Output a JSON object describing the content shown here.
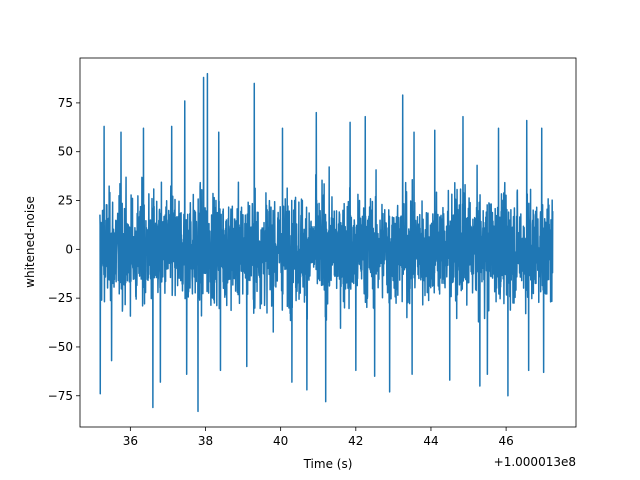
{
  "chart_data": {
    "type": "line",
    "title": "",
    "xlabel": "Time (s)",
    "ylabel": "whitened-noise",
    "x_offset_label": "+1.000013e8",
    "xlim": [
      34.66,
      47.86
    ],
    "ylim": [
      -91,
      98
    ],
    "x_range": [
      35.19,
      47.24
    ],
    "x_ticks": [
      36,
      38,
      40,
      42,
      44,
      46
    ],
    "x_tick_labels": [
      "36",
      "38",
      "40",
      "42",
      "44",
      "46"
    ],
    "y_ticks": [
      -75,
      -50,
      -25,
      0,
      25,
      50,
      75
    ],
    "y_tick_labels": [
      "−75",
      "−50",
      "−25",
      "0",
      "25",
      "50",
      "75"
    ],
    "grid": false,
    "legend": "none",
    "series": [
      {
        "color": "#1f77b4",
        "typical_range": [
          -45,
          45
        ],
        "peaks": [
          {
            "x": 35.3,
            "y": 63
          },
          {
            "x": 35.75,
            "y": 60
          },
          {
            "x": 36.35,
            "y": 62
          },
          {
            "x": 36.6,
            "y": 72
          },
          {
            "x": 37.1,
            "y": 63
          },
          {
            "x": 37.45,
            "y": 76
          },
          {
            "x": 37.95,
            "y": 88
          },
          {
            "x": 38.05,
            "y": 90
          },
          {
            "x": 38.35,
            "y": 60
          },
          {
            "x": 39.3,
            "y": 85
          },
          {
            "x": 40.05,
            "y": 62
          },
          {
            "x": 40.95,
            "y": 70
          },
          {
            "x": 41.85,
            "y": 65
          },
          {
            "x": 42.25,
            "y": 68
          },
          {
            "x": 43.25,
            "y": 79
          },
          {
            "x": 43.55,
            "y": 60
          },
          {
            "x": 44.1,
            "y": 61
          },
          {
            "x": 44.85,
            "y": 68
          },
          {
            "x": 45.8,
            "y": 62
          },
          {
            "x": 46.55,
            "y": 66
          },
          {
            "x": 46.95,
            "y": 62
          }
        ],
        "troughs": [
          {
            "x": 35.2,
            "y": -74
          },
          {
            "x": 35.5,
            "y": -57
          },
          {
            "x": 36.6,
            "y": -81
          },
          {
            "x": 36.8,
            "y": -68
          },
          {
            "x": 37.5,
            "y": -64
          },
          {
            "x": 37.8,
            "y": -83
          },
          {
            "x": 38.4,
            "y": -62
          },
          {
            "x": 39.1,
            "y": -60
          },
          {
            "x": 40.3,
            "y": -68
          },
          {
            "x": 40.7,
            "y": -72
          },
          {
            "x": 41.2,
            "y": -78
          },
          {
            "x": 42.0,
            "y": -62
          },
          {
            "x": 42.5,
            "y": -65
          },
          {
            "x": 42.9,
            "y": -73
          },
          {
            "x": 43.5,
            "y": -64
          },
          {
            "x": 44.5,
            "y": -67
          },
          {
            "x": 45.3,
            "y": -70
          },
          {
            "x": 45.5,
            "y": -64
          },
          {
            "x": 46.05,
            "y": -75
          },
          {
            "x": 46.6,
            "y": -62
          },
          {
            "x": 47.0,
            "y": -63
          }
        ]
      }
    ]
  }
}
